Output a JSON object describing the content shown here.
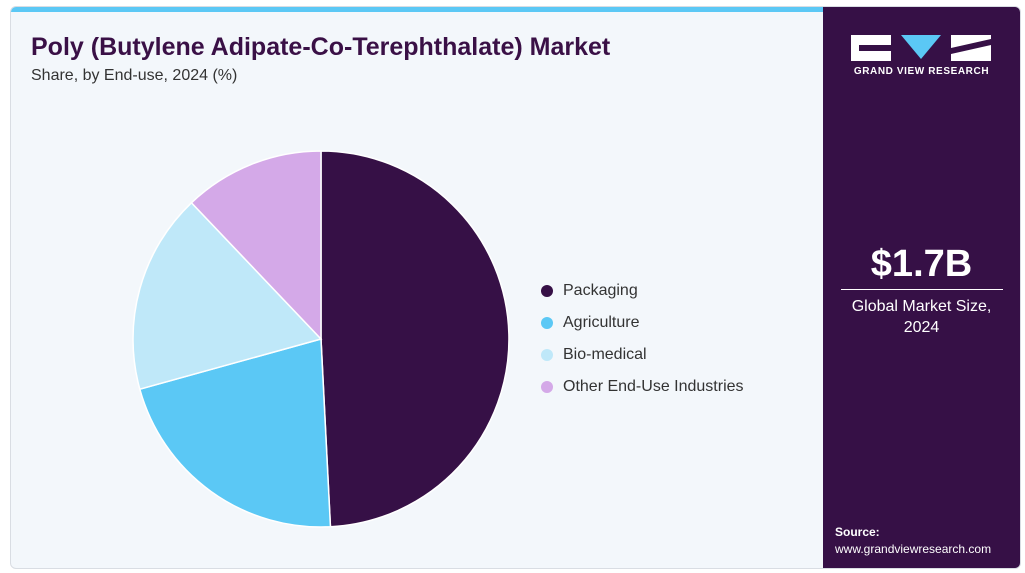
{
  "header": {
    "title": "Poly (Butylene Adipate-Co-Terephthalate) Market",
    "subtitle": "Share, by End-use, 2024 (%)"
  },
  "chart_data": {
    "type": "pie",
    "title": "Poly (Butylene Adipate-Co-Terephthalate) Market",
    "subtitle": "Share, by End-use, 2024 (%)",
    "labels": [
      "Packaging",
      "Agriculture",
      "Bio-medical",
      "Other End-Use Industries"
    ],
    "values": [
      49.2,
      21.5,
      17.2,
      12.1
    ],
    "colors": [
      "#361046",
      "#5bc8f5",
      "#bfe8f9",
      "#d4a9e8"
    ],
    "legend_position": "right"
  },
  "legend": {
    "items": [
      {
        "label": "Packaging",
        "color": "#361046"
      },
      {
        "label": "Agriculture",
        "color": "#5bc8f5"
      },
      {
        "label": "Bio-medical",
        "color": "#bfe8f9"
      },
      {
        "label": "Other End-Use Industries",
        "color": "#d4a9e8"
      }
    ]
  },
  "sidebar": {
    "brand": "GRAND VIEW RESEARCH",
    "logo_icon": "gvr-logo-icon",
    "market_size": "$1.7B",
    "market_label_line1": "Global Market Size,",
    "market_label_line2": "2024",
    "source_title": "Source:",
    "source_url": "www.grandviewresearch.com"
  },
  "colors": {
    "accent_bar": "#5bc8f5",
    "sidebar_bg": "#361046",
    "title": "#3a1046"
  }
}
